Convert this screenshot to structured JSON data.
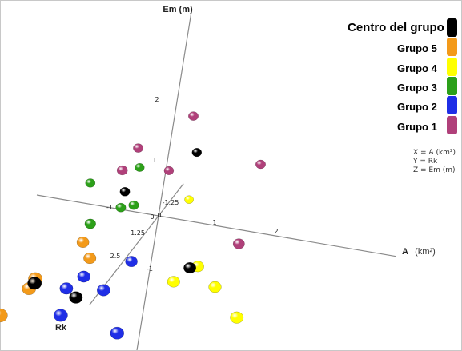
{
  "chart_data": {
    "type": "scatter",
    "title": "",
    "axes": {
      "x": {
        "label": "A",
        "unit": "(km²)",
        "ticks": [
          "-1",
          "1",
          "2"
        ]
      },
      "y": {
        "label": "Rk",
        "ticks": [
          "1.25",
          "2.5",
          "-1.25"
        ]
      },
      "z": {
        "label": "Em (m)",
        "ticks": [
          "2",
          "1",
          "0",
          "-1"
        ]
      },
      "origin_labels": [
        "0",
        "0"
      ]
    },
    "legend": {
      "placement": "right",
      "items": [
        {
          "label": "Centro del grupo",
          "color": "#000000"
        },
        {
          "label": "Grupo 5",
          "color": "#f39a1a"
        },
        {
          "label": "Grupo 4",
          "color": "#ffff00"
        },
        {
          "label": "Grupo 3",
          "color": "#2ca019"
        },
        {
          "label": "Grupo 2",
          "color": "#1f2ee6"
        },
        {
          "label": "Grupo 1",
          "color": "#b0407a"
        }
      ]
    },
    "axis_key": [
      "X = A (km²)",
      "Y = Rk",
      "Z = Em (m)"
    ],
    "series": [
      {
        "name": "Grupo 1",
        "points": [
          [
            0.3,
            0.0,
            2.3
          ],
          [
            1.5,
            0.0,
            1.5
          ],
          [
            1.6,
            1.0,
            0.3
          ],
          [
            -0.5,
            0.0,
            1.4
          ],
          [
            -0.6,
            0.4,
            1.1
          ],
          [
            0.0,
            -0.2,
            0.9
          ]
        ]
      },
      {
        "name": "Grupo 2",
        "points": [
          [
            -0.6,
            1.8,
            -0.5
          ],
          [
            0.0,
            1.3,
            -0.3
          ],
          [
            -0.8,
            2.0,
            -0.7
          ],
          [
            -0.7,
            2.5,
            -1.0
          ],
          [
            0.2,
            2.3,
            -1.3
          ],
          [
            -0.2,
            2.0,
            -0.6
          ]
        ]
      },
      {
        "name": "Grupo 3",
        "points": [
          [
            -0.5,
            -0.3,
            0.8
          ],
          [
            -1.2,
            -0.1,
            0.4
          ],
          [
            -0.4,
            0.1,
            0.2
          ],
          [
            -0.6,
            0.1,
            0.1
          ],
          [
            -0.9,
            0.7,
            0.0
          ]
        ]
      },
      {
        "name": "Grupo 4",
        "points": [
          [
            0.3,
            -0.6,
            0.1
          ],
          [
            1.1,
            1.4,
            -0.1
          ],
          [
            1.5,
            1.7,
            -0.3
          ],
          [
            0.8,
            1.6,
            -0.4
          ],
          [
            2.0,
            2.0,
            -0.7
          ]
        ]
      },
      {
        "name": "Grupo 5",
        "points": [
          [
            -0.8,
            1.4,
            0.0
          ],
          [
            -0.6,
            1.6,
            -0.2
          ],
          [
            -1.2,
            2.5,
            -0.3
          ],
          [
            -1.5,
            3.2,
            -0.8
          ],
          [
            -1.3,
            2.4,
            -0.6
          ]
        ]
      },
      {
        "name": "Centro del grupo",
        "points": [
          [
            0.4,
            -0.2,
            1.4
          ],
          [
            -0.6,
            0.0,
            0.4
          ],
          [
            -0.6,
            2.1,
            -0.8
          ],
          [
            -1.2,
            2.5,
            -0.4
          ],
          [
            1.0,
            1.5,
            -0.1
          ]
        ]
      }
    ]
  }
}
